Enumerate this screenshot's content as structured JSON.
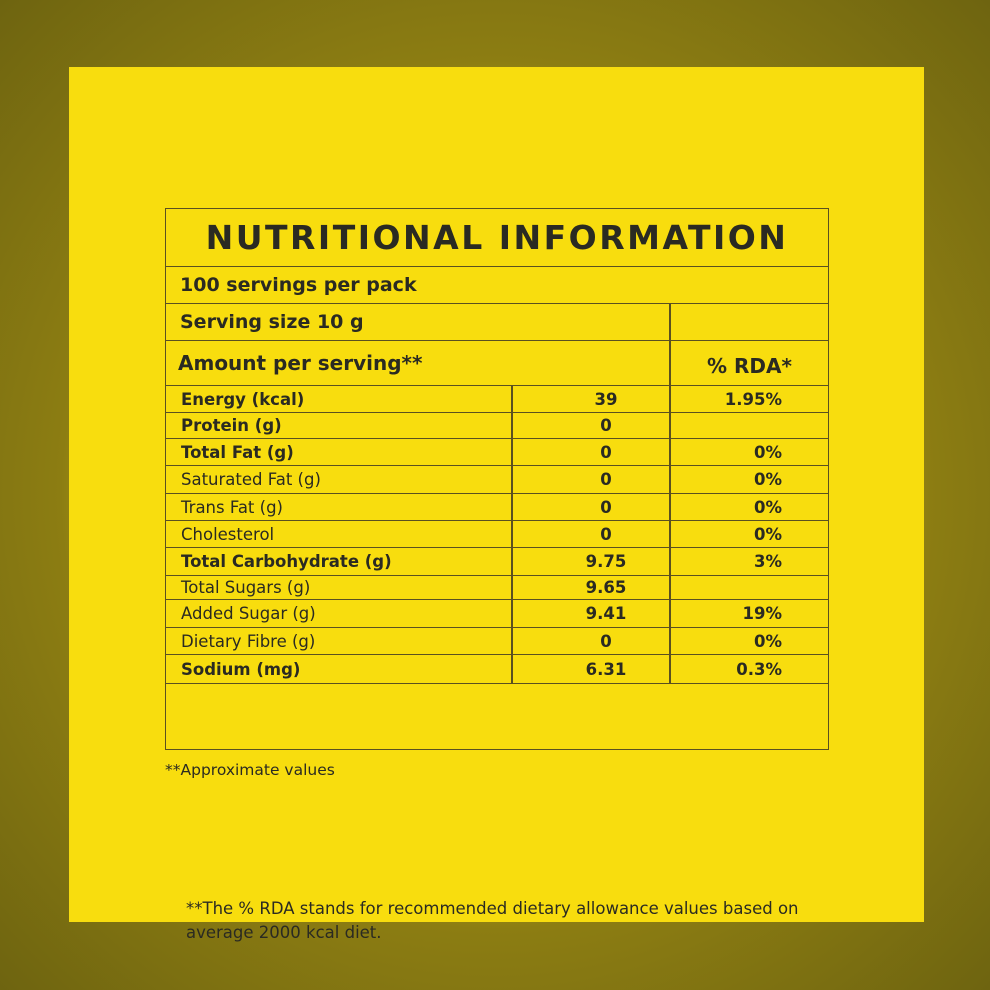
{
  "title": "NUTRITIONAL INFORMATION",
  "servings_per_pack": "100 servings per pack",
  "serving_size": "Serving size 10 g",
  "amount_header": "Amount per serving**",
  "rda_header": "% RDA*",
  "rows": [
    {
      "label": "Energy (kcal)",
      "value": "39",
      "rda": "1.95%",
      "bold": true
    },
    {
      "label": "Protein (g)",
      "value": "0",
      "rda": "",
      "bold": true
    },
    {
      "label": "Total Fat (g)",
      "value": "0",
      "rda": "0%",
      "bold": true
    },
    {
      "label": "Saturated Fat (g)",
      "value": "0",
      "rda": "0%",
      "bold": false
    },
    {
      "label": "Trans Fat (g)",
      "value": "0",
      "rda": "0%",
      "bold": false
    },
    {
      "label": "Cholesterol",
      "value": "0",
      "rda": "0%",
      "bold": false
    },
    {
      "label": "Total Carbohydrate (g)",
      "value": "9.75",
      "rda": "3%",
      "bold": true
    },
    {
      "label": "Total Sugars (g)",
      "value": "9.65",
      "rda": "",
      "bold": false
    },
    {
      "label": "Added  Sugar (g)",
      "value": "9.41",
      "rda": "19%",
      "bold": false
    },
    {
      "label": "Dietary Fibre (g)",
      "value": "0",
      "rda": "0%",
      "bold": false
    },
    {
      "label": "Sodium (mg)",
      "value": "6.31",
      "rda": "0.3%",
      "bold": true
    }
  ],
  "footnote": "**The % RDA stands for recommended dietary allowance values based on average 2000 kcal diet.",
  "approx_note": "**Approximate values"
}
